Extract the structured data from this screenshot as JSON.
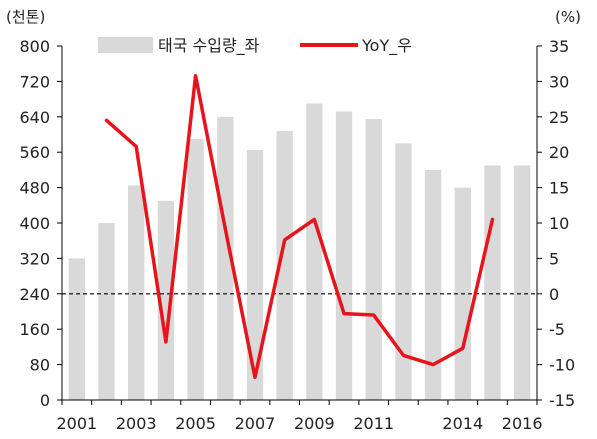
{
  "chart_data": {
    "type": "bar",
    "left_unit": "(천톤)",
    "right_unit": "(%)",
    "x": [
      "2001",
      "2002",
      "2003",
      "2004",
      "2005",
      "2006",
      "2007",
      "2008",
      "2009",
      "2010",
      "2011",
      "2012",
      "2013",
      "2014",
      "2015",
      "2016"
    ],
    "x_tick_labels": [
      "2001",
      "2003",
      "2005",
      "2007",
      "2009",
      "2011",
      "2014",
      "2016"
    ],
    "x_tick_label_indices": [
      0,
      2,
      4,
      6,
      8,
      10,
      13,
      15
    ],
    "left_axis": {
      "min": 0,
      "max": 800,
      "step": 80
    },
    "right_axis": {
      "min": -15,
      "max": 35,
      "step": 5
    },
    "reference_line_left": 240,
    "series": [
      {
        "name": "태국 수입량_좌",
        "type": "bar",
        "axis": "left",
        "color": "#d9d9d9",
        "values": [
          320,
          400,
          485,
          450,
          590,
          640,
          565,
          608,
          670,
          652,
          635,
          580,
          520,
          480,
          530,
          530
        ]
      },
      {
        "name": "YoY_우",
        "type": "line",
        "axis": "right",
        "color": "#e8141b",
        "values": [
          null,
          24.5,
          20.8,
          -6.8,
          30.8,
          9.2,
          -11.8,
          7.6,
          10.5,
          -2.8,
          -3.0,
          -8.7,
          -10.0,
          -7.7,
          10.5,
          null
        ]
      }
    ]
  }
}
